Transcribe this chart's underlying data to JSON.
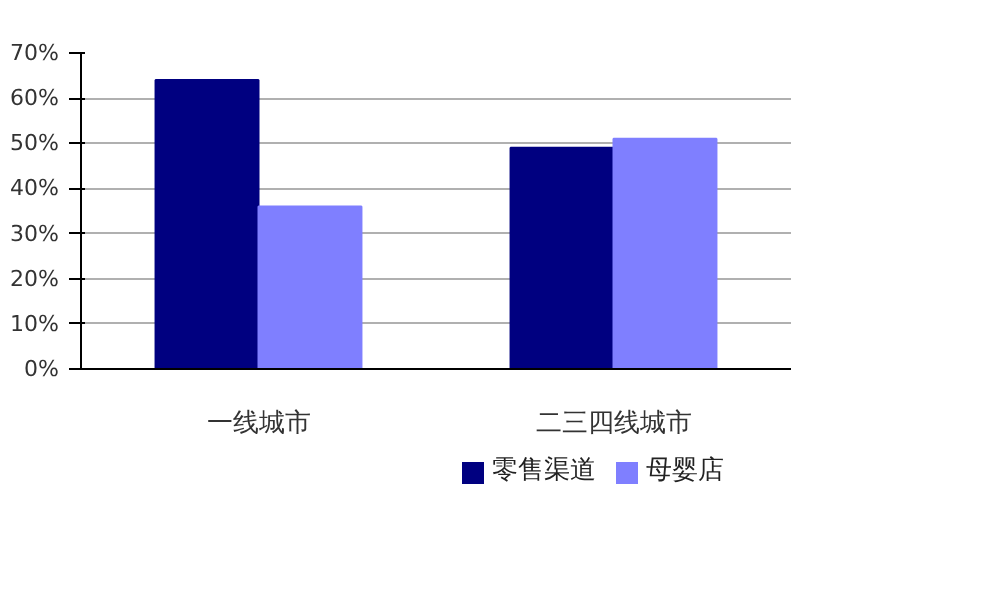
{
  "chart_data": {
    "type": "bar",
    "categories": [
      "一线城市",
      "二三四线城市"
    ],
    "series": [
      {
        "name": "零售渠道",
        "color": "#000080",
        "values": [
          64,
          49
        ]
      },
      {
        "name": "母婴店",
        "color": "#7f7fff",
        "values": [
          36,
          51
        ]
      }
    ],
    "ylim": [
      0,
      70
    ],
    "yticks": [
      {
        "value": 0,
        "label": "0%"
      },
      {
        "value": 10,
        "label": "10%"
      },
      {
        "value": 20,
        "label": "20%"
      },
      {
        "value": 30,
        "label": "30%"
      },
      {
        "value": 40,
        "label": "40%"
      },
      {
        "value": 50,
        "label": "50%"
      },
      {
        "value": 60,
        "label": "60%"
      },
      {
        "value": 70,
        "label": "70%"
      }
    ],
    "grid": "y",
    "legend": "bottom"
  }
}
